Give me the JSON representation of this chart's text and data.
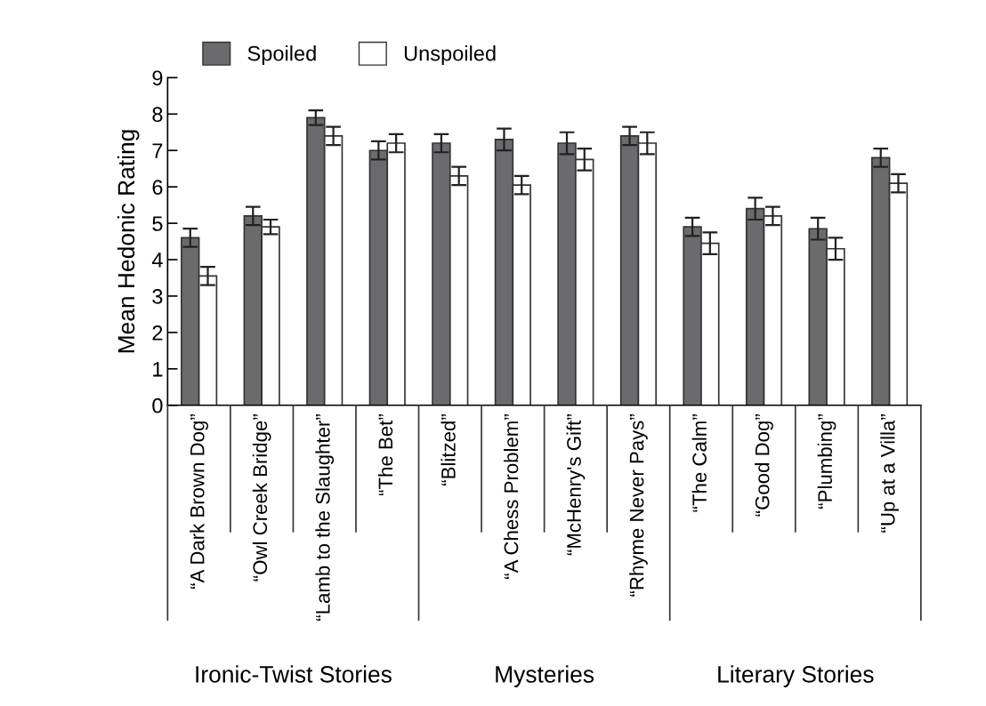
{
  "chart_data": {
    "type": "bar",
    "ylabel": "Mean Hedonic Rating",
    "categories": [
      "“A Dark Brown Dog”",
      "“Owl Creek Bridge”",
      "“Lamb to the Slaughter”",
      "“The Bet”",
      "“Blitzed”",
      "“A Chess Problem”",
      "“McHenry's Gift”",
      "“Rhyme Never Pays”",
      "“The Calm”",
      "“Good Dog”",
      "“Plumbing”",
      "“Up at a Villa”"
    ],
    "series": [
      {
        "name": "Spoiled",
        "color": "#6b6b6e",
        "values": [
          4.6,
          5.2,
          7.9,
          7.0,
          7.2,
          7.3,
          7.2,
          7.4,
          4.9,
          5.4,
          4.85,
          6.8
        ],
        "errors": [
          0.25,
          0.25,
          0.2,
          0.25,
          0.25,
          0.3,
          0.3,
          0.25,
          0.25,
          0.3,
          0.3,
          0.25
        ]
      },
      {
        "name": "Unspoiled",
        "color": "#ffffff",
        "values": [
          3.55,
          4.9,
          7.4,
          7.2,
          6.3,
          6.05,
          6.75,
          7.2,
          4.45,
          5.2,
          4.3,
          6.1
        ],
        "errors": [
          0.25,
          0.2,
          0.25,
          0.25,
          0.25,
          0.25,
          0.3,
          0.3,
          0.3,
          0.25,
          0.3,
          0.25
        ]
      }
    ],
    "ylim": [
      0,
      9
    ],
    "yticks": [
      0,
      1,
      2,
      3,
      4,
      5,
      6,
      7,
      8,
      9
    ],
    "grid": false,
    "legend": "top left",
    "annotations": [
      "Ironic-Twist Stories",
      "Mysteries",
      "Literary Stories"
    ]
  }
}
